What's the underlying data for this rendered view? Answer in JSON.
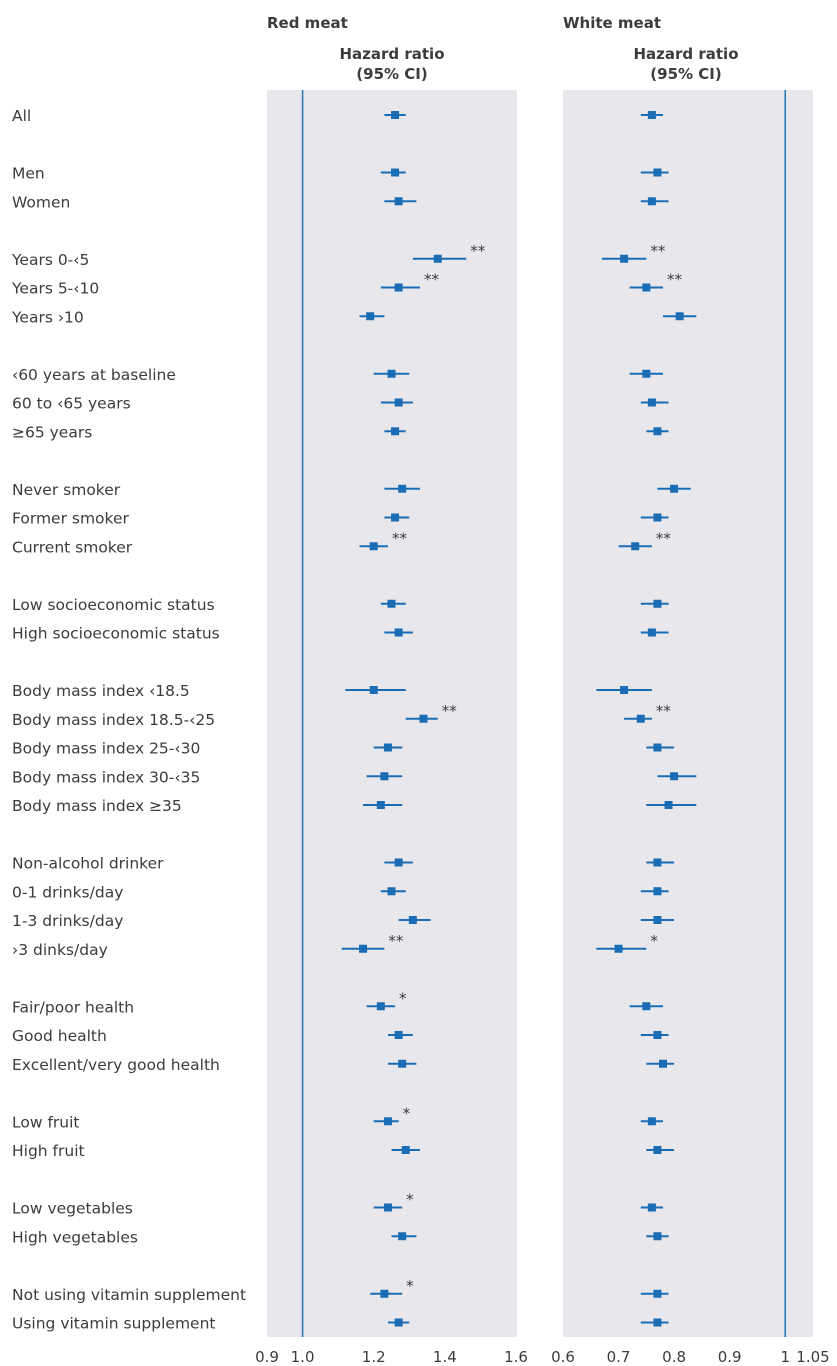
{
  "chart_data": [
    {
      "type": "forest",
      "title": "Red meat",
      "header": [
        "Hazard ratio",
        "(95% CI)"
      ],
      "reference_line": 1.0,
      "xlim": [
        0.9,
        1.6
      ],
      "ticks": [
        0.9,
        1.0,
        1.2,
        1.4,
        1.6
      ],
      "tick_labels": [
        "0.9",
        "1.0",
        "1.2",
        "1.4",
        "1.6"
      ],
      "rows": [
        {
          "label": "All",
          "hr": 1.26,
          "lo": 1.23,
          "hi": 1.29,
          "sig": ""
        },
        {
          "label": "Men",
          "hr": 1.26,
          "lo": 1.22,
          "hi": 1.29,
          "sig": ""
        },
        {
          "label": "Women",
          "hr": 1.27,
          "lo": 1.23,
          "hi": 1.32,
          "sig": ""
        },
        {
          "label": "Years 0-‹5",
          "hr": 1.38,
          "lo": 1.31,
          "hi": 1.46,
          "sig": "**"
        },
        {
          "label": "Years 5-‹10",
          "hr": 1.27,
          "lo": 1.22,
          "hi": 1.33,
          "sig": "**"
        },
        {
          "label": "Years ›10",
          "hr": 1.19,
          "lo": 1.16,
          "hi": 1.23,
          "sig": ""
        },
        {
          "label": "‹60 years at baseline",
          "hr": 1.25,
          "lo": 1.2,
          "hi": 1.3,
          "sig": ""
        },
        {
          "label": "60 to ‹65 years",
          "hr": 1.27,
          "lo": 1.22,
          "hi": 1.31,
          "sig": ""
        },
        {
          "label": "≥65 years",
          "hr": 1.26,
          "lo": 1.23,
          "hi": 1.29,
          "sig": ""
        },
        {
          "label": "Never smoker",
          "hr": 1.28,
          "lo": 1.23,
          "hi": 1.33,
          "sig": ""
        },
        {
          "label": "Former smoker",
          "hr": 1.26,
          "lo": 1.23,
          "hi": 1.3,
          "sig": ""
        },
        {
          "label": "Current smoker",
          "hr": 1.2,
          "lo": 1.16,
          "hi": 1.24,
          "sig": "**"
        },
        {
          "label": "Low socioeconomic status",
          "hr": 1.25,
          "lo": 1.22,
          "hi": 1.29,
          "sig": ""
        },
        {
          "label": "High socioeconomic status",
          "hr": 1.27,
          "lo": 1.23,
          "hi": 1.31,
          "sig": ""
        },
        {
          "label": "Body mass index ‹18.5",
          "hr": 1.2,
          "lo": 1.12,
          "hi": 1.29,
          "sig": ""
        },
        {
          "label": "Body mass index 18.5-‹25",
          "hr": 1.34,
          "lo": 1.29,
          "hi": 1.38,
          "sig": "**"
        },
        {
          "label": "Body mass index 25-‹30",
          "hr": 1.24,
          "lo": 1.2,
          "hi": 1.28,
          "sig": ""
        },
        {
          "label": "Body mass index 30-‹35",
          "hr": 1.23,
          "lo": 1.18,
          "hi": 1.28,
          "sig": ""
        },
        {
          "label": "Body mass index ≥35",
          "hr": 1.22,
          "lo": 1.17,
          "hi": 1.28,
          "sig": ""
        },
        {
          "label": "Non-alcohol drinker",
          "hr": 1.27,
          "lo": 1.23,
          "hi": 1.31,
          "sig": ""
        },
        {
          "label": "0-1 drinks/day",
          "hr": 1.25,
          "lo": 1.22,
          "hi": 1.29,
          "sig": ""
        },
        {
          "label": "1-3 drinks/day",
          "hr": 1.31,
          "lo": 1.27,
          "hi": 1.36,
          "sig": ""
        },
        {
          "label": "›3 dinks/day",
          "hr": 1.17,
          "lo": 1.11,
          "hi": 1.23,
          "sig": "**"
        },
        {
          "label": "Fair/poor health",
          "hr": 1.22,
          "lo": 1.18,
          "hi": 1.26,
          "sig": "*"
        },
        {
          "label": "Good health",
          "hr": 1.27,
          "lo": 1.24,
          "hi": 1.31,
          "sig": ""
        },
        {
          "label": "Excellent/very good health",
          "hr": 1.28,
          "lo": 1.24,
          "hi": 1.32,
          "sig": ""
        },
        {
          "label": "Low fruit",
          "hr": 1.24,
          "lo": 1.2,
          "hi": 1.27,
          "sig": "*"
        },
        {
          "label": "High fruit",
          "hr": 1.29,
          "lo": 1.25,
          "hi": 1.33,
          "sig": ""
        },
        {
          "label": "Low vegetables",
          "hr": 1.24,
          "lo": 1.2,
          "hi": 1.28,
          "sig": "*"
        },
        {
          "label": "High vegetables",
          "hr": 1.28,
          "lo": 1.25,
          "hi": 1.32,
          "sig": ""
        },
        {
          "label": "Not using vitamin supplement",
          "hr": 1.23,
          "lo": 1.19,
          "hi": 1.28,
          "sig": "*"
        },
        {
          "label": "Using vitamin supplement",
          "hr": 1.27,
          "lo": 1.24,
          "hi": 1.3,
          "sig": ""
        }
      ]
    },
    {
      "type": "forest",
      "title": "White meat",
      "header": [
        "Hazard ratio",
        "(95% CI)"
      ],
      "reference_line": 1.0,
      "xlim": [
        0.6,
        1.05
      ],
      "ticks": [
        0.6,
        0.7,
        0.8,
        0.9,
        1.0,
        1.05
      ],
      "tick_labels": [
        "0.6",
        "0.7",
        "0.8",
        "0.9",
        "1",
        "1.05"
      ],
      "rows": [
        {
          "hr": 0.76,
          "lo": 0.74,
          "hi": 0.78,
          "sig": ""
        },
        {
          "hr": 0.77,
          "lo": 0.74,
          "hi": 0.79,
          "sig": ""
        },
        {
          "hr": 0.76,
          "lo": 0.74,
          "hi": 0.79,
          "sig": ""
        },
        {
          "hr": 0.71,
          "lo": 0.67,
          "hi": 0.75,
          "sig": "**"
        },
        {
          "hr": 0.75,
          "lo": 0.72,
          "hi": 0.78,
          "sig": "**"
        },
        {
          "hr": 0.81,
          "lo": 0.78,
          "hi": 0.84,
          "sig": ""
        },
        {
          "hr": 0.75,
          "lo": 0.72,
          "hi": 0.78,
          "sig": ""
        },
        {
          "hr": 0.76,
          "lo": 0.74,
          "hi": 0.79,
          "sig": ""
        },
        {
          "hr": 0.77,
          "lo": 0.75,
          "hi": 0.79,
          "sig": ""
        },
        {
          "hr": 0.8,
          "lo": 0.77,
          "hi": 0.83,
          "sig": ""
        },
        {
          "hr": 0.77,
          "lo": 0.74,
          "hi": 0.79,
          "sig": ""
        },
        {
          "hr": 0.73,
          "lo": 0.7,
          "hi": 0.76,
          "sig": "**"
        },
        {
          "hr": 0.77,
          "lo": 0.74,
          "hi": 0.79,
          "sig": ""
        },
        {
          "hr": 0.76,
          "lo": 0.74,
          "hi": 0.79,
          "sig": ""
        },
        {
          "hr": 0.71,
          "lo": 0.66,
          "hi": 0.76,
          "sig": ""
        },
        {
          "hr": 0.74,
          "lo": 0.71,
          "hi": 0.76,
          "sig": "**"
        },
        {
          "hr": 0.77,
          "lo": 0.75,
          "hi": 0.8,
          "sig": ""
        },
        {
          "hr": 0.8,
          "lo": 0.77,
          "hi": 0.84,
          "sig": ""
        },
        {
          "hr": 0.79,
          "lo": 0.75,
          "hi": 0.84,
          "sig": ""
        },
        {
          "hr": 0.77,
          "lo": 0.75,
          "hi": 0.8,
          "sig": ""
        },
        {
          "hr": 0.77,
          "lo": 0.74,
          "hi": 0.79,
          "sig": ""
        },
        {
          "hr": 0.77,
          "lo": 0.74,
          "hi": 0.8,
          "sig": ""
        },
        {
          "hr": 0.7,
          "lo": 0.66,
          "hi": 0.75,
          "sig": "*"
        },
        {
          "hr": 0.75,
          "lo": 0.72,
          "hi": 0.78,
          "sig": ""
        },
        {
          "hr": 0.77,
          "lo": 0.74,
          "hi": 0.79,
          "sig": ""
        },
        {
          "hr": 0.78,
          "lo": 0.75,
          "hi": 0.8,
          "sig": ""
        },
        {
          "hr": 0.76,
          "lo": 0.74,
          "hi": 0.78,
          "sig": ""
        },
        {
          "hr": 0.77,
          "lo": 0.75,
          "hi": 0.8,
          "sig": ""
        },
        {
          "hr": 0.76,
          "lo": 0.74,
          "hi": 0.78,
          "sig": ""
        },
        {
          "hr": 0.77,
          "lo": 0.75,
          "hi": 0.79,
          "sig": ""
        },
        {
          "hr": 0.77,
          "lo": 0.74,
          "hi": 0.79,
          "sig": ""
        },
        {
          "hr": 0.77,
          "lo": 0.74,
          "hi": 0.79,
          "sig": ""
        }
      ]
    }
  ],
  "colors": {
    "panel_bg": "#e8e8ec",
    "marker": "#1a6db5",
    "reference_line": "#2a7ab8",
    "text": "#3c3c3c"
  }
}
